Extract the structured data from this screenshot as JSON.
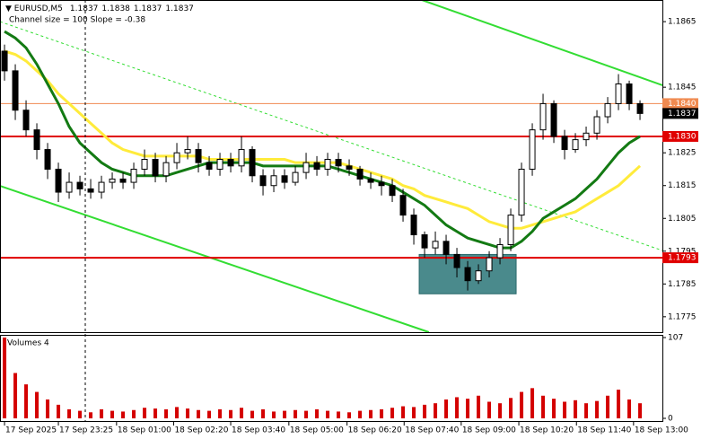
{
  "chart_data": {
    "type": "candlestick",
    "title": "EURUSD,M5",
    "header_values": [
      1.1837,
      1.1838,
      1.1837,
      1.1837
    ],
    "subtitle": "Channel size = 100 Slope = -0.38",
    "volume_title": "Volumes 4",
    "open": [
      1.1856,
      1.185,
      1.1838,
      1.1832,
      1.1826,
      1.182,
      1.1813,
      1.1816,
      1.1814,
      1.1813,
      1.1816,
      1.1817,
      1.1816,
      1.182,
      1.1823,
      1.1818,
      1.1822,
      1.1825,
      1.1826,
      1.1822,
      1.182,
      1.1823,
      1.1821,
      1.1826,
      1.1818,
      1.1815,
      1.1818,
      1.1816,
      1.1819,
      1.1822,
      1.182,
      1.1823,
      1.1821,
      1.182,
      1.1817,
      1.1816,
      1.1815,
      1.1812,
      1.1806,
      1.18,
      1.1796,
      1.1798,
      1.1794,
      1.179,
      1.1786,
      1.1789,
      1.1793,
      1.1797,
      1.1806,
      1.182,
      1.1832,
      1.184,
      1.183,
      1.1826,
      1.1829,
      1.1831,
      1.1836,
      1.184,
      1.1846,
      1.184
    ],
    "high": [
      1.1858,
      1.1852,
      1.1841,
      1.1834,
      1.1828,
      1.1822,
      1.1819,
      1.1818,
      1.1817,
      1.1818,
      1.1819,
      1.1819,
      1.1822,
      1.1826,
      1.1825,
      1.1824,
      1.1828,
      1.183,
      1.1828,
      1.1824,
      1.1825,
      1.1825,
      1.183,
      1.1827,
      1.182,
      1.182,
      1.182,
      1.1821,
      1.1825,
      1.1824,
      1.1825,
      1.1825,
      1.1823,
      1.1821,
      1.1819,
      1.1818,
      1.1817,
      1.1814,
      1.1808,
      1.1801,
      1.1801,
      1.18,
      1.1796,
      1.1792,
      1.1791,
      1.1795,
      1.1799,
      1.1808,
      1.1822,
      1.1834,
      1.1843,
      1.1841,
      1.1832,
      1.1831,
      1.1833,
      1.1838,
      1.1842,
      1.1849,
      1.1847,
      1.1841
    ],
    "low": [
      1.1847,
      1.1835,
      1.183,
      1.1823,
      1.1817,
      1.181,
      1.1811,
      1.1812,
      1.1811,
      1.1811,
      1.1814,
      1.1814,
      1.1814,
      1.1818,
      1.1816,
      1.1816,
      1.182,
      1.1823,
      1.1819,
      1.1818,
      1.1818,
      1.1819,
      1.1819,
      1.1816,
      1.1812,
      1.1813,
      1.1814,
      1.1815,
      1.1817,
      1.1818,
      1.1818,
      1.1819,
      1.1818,
      1.1815,
      1.1814,
      1.1812,
      1.181,
      1.1804,
      1.1797,
      1.1793,
      1.1794,
      1.1791,
      1.1787,
      1.1783,
      1.1785,
      1.1787,
      1.1791,
      1.1795,
      1.1804,
      1.1818,
      1.1829,
      1.1828,
      1.1823,
      1.1825,
      1.1827,
      1.1829,
      1.1834,
      1.1838,
      1.1838,
      1.1835
    ],
    "close": [
      1.185,
      1.1838,
      1.1832,
      1.1826,
      1.182,
      1.1813,
      1.1816,
      1.1814,
      1.1813,
      1.1816,
      1.1817,
      1.1816,
      1.182,
      1.1823,
      1.1818,
      1.1822,
      1.1825,
      1.1826,
      1.1822,
      1.182,
      1.1823,
      1.1821,
      1.1826,
      1.1818,
      1.1815,
      1.1818,
      1.1816,
      1.1819,
      1.1822,
      1.182,
      1.1823,
      1.1821,
      1.182,
      1.1817,
      1.1816,
      1.1815,
      1.1812,
      1.1806,
      1.18,
      1.1796,
      1.1798,
      1.1794,
      1.179,
      1.1786,
      1.1789,
      1.1793,
      1.1797,
      1.1806,
      1.182,
      1.1832,
      1.184,
      1.183,
      1.1826,
      1.1829,
      1.1831,
      1.1836,
      1.184,
      1.1846,
      1.184,
      1.1837
    ],
    "volumes": [
      107,
      60,
      45,
      35,
      25,
      18,
      12,
      10,
      8,
      12,
      10,
      9,
      11,
      14,
      13,
      12,
      15,
      13,
      11,
      10,
      12,
      11,
      14,
      10,
      12,
      9,
      10,
      11,
      10,
      12,
      10,
      9,
      8,
      10,
      11,
      12,
      14,
      16,
      15,
      18,
      20,
      25,
      28,
      26,
      30,
      22,
      20,
      27,
      35,
      40,
      30,
      26,
      22,
      24,
      20,
      23,
      30,
      38,
      25,
      20
    ],
    "volume_color": "#d40000",
    "series": [
      {
        "color": "#ffeb3b",
        "values": [
          1.1856,
          1.1855,
          1.1853,
          1.185,
          1.1847,
          1.1843,
          1.184,
          1.1837,
          1.1834,
          1.1831,
          1.1828,
          1.1826,
          1.1825,
          1.1824,
          1.1824,
          1.1824,
          1.1824,
          1.1824,
          1.1824,
          1.1823,
          1.1823,
          1.1823,
          1.1823,
          1.1823,
          1.1823,
          1.1823,
          1.1823,
          1.1822,
          1.1822,
          1.1822,
          1.1822,
          1.1822,
          1.1821,
          1.182,
          1.1819,
          1.1818,
          1.1817,
          1.1815,
          1.1814,
          1.1812,
          1.1811,
          1.181,
          1.1809,
          1.1808,
          1.1806,
          1.1804,
          1.1803,
          1.1802,
          1.1802,
          1.1803,
          1.1804,
          1.1805,
          1.1806,
          1.1807,
          1.1809,
          1.1811,
          1.1813,
          1.1815,
          1.1818,
          1.1821
        ]
      },
      {
        "color": "#137a13",
        "values": [
          1.1862,
          1.186,
          1.1857,
          1.1852,
          1.1846,
          1.184,
          1.1833,
          1.1828,
          1.1825,
          1.1822,
          1.182,
          1.1819,
          1.1818,
          1.1818,
          1.1818,
          1.1818,
          1.1819,
          1.182,
          1.1821,
          1.1822,
          1.1822,
          1.1822,
          1.1822,
          1.1822,
          1.1821,
          1.1821,
          1.1821,
          1.1821,
          1.1821,
          1.1821,
          1.1821,
          1.182,
          1.1819,
          1.1818,
          1.1817,
          1.1816,
          1.1815,
          1.1813,
          1.1811,
          1.1809,
          1.1806,
          1.1803,
          1.1801,
          1.1799,
          1.1798,
          1.1797,
          1.1796,
          1.1796,
          1.1798,
          1.1801,
          1.1805,
          1.1807,
          1.1809,
          1.1811,
          1.1814,
          1.1817,
          1.1821,
          1.1825,
          1.1828,
          1.183
        ]
      }
    ],
    "channel": [
      {
        "color": "#33dd33",
        "dashed": false,
        "x": [
          38.75,
          61.08
        ],
        "y": [
          1.18716,
          1.18456
        ]
      },
      {
        "color": "#33dd33",
        "dashed": true,
        "x": [
          -0.42,
          61.08
        ],
        "y": [
          1.1865,
          1.17952
        ]
      },
      {
        "color": "#33dd33",
        "dashed": false,
        "x": [
          -0.42,
          39.4
        ],
        "y": [
          1.18149,
          1.17703
        ]
      }
    ],
    "zone": {
      "color": "#4a8a8c",
      "x": [
        38.5,
        47.5
      ],
      "y": [
        1.1782,
        1.1794
      ]
    },
    "levels": [
      {
        "value": 1.184,
        "label": "1.1840",
        "color": "#f08a50"
      },
      {
        "value": 1.183,
        "label": "1.1830",
        "color": "#e00000"
      },
      {
        "value": 1.1793,
        "color": "#e00000"
      }
    ],
    "last_price": 1.1837,
    "xlim": [
      -0.42,
      61.08
    ],
    "ylim": [
      1.17703,
      1.18716
    ],
    "yticks": [
      1.1865,
      1.1845,
      1.1825,
      1.1815,
      1.1805,
      1.1795,
      1.1785,
      1.1775
    ],
    "vlim": [
      0,
      107
    ],
    "vticks": [
      0,
      107
    ],
    "xticks": [
      {
        "value": 0,
        "label": "17 Sep 2025"
      },
      {
        "value": 5,
        "label": "17 Sep 23:25"
      },
      {
        "value": 10.4,
        "label": "18 Sep 01:00"
      },
      {
        "value": 15.7,
        "label": "18 Sep 02:20"
      },
      {
        "value": 21,
        "label": "18 Sep 03:40"
      },
      {
        "value": 26.4,
        "label": "18 Sep 05:00"
      },
      {
        "value": 31.8,
        "label": "18 Sep 06:20"
      },
      {
        "value": 37.1,
        "label": "18 Sep 07:40"
      },
      {
        "value": 42.4,
        "label": "18 Sep 09:00"
      },
      {
        "value": 47.75,
        "label": "18 Sep 10:20"
      },
      {
        "value": 53.1,
        "label": "18 Sep 11:40"
      },
      {
        "value": 58.4,
        "label": "18 Sep 13:00"
      }
    ]
  }
}
